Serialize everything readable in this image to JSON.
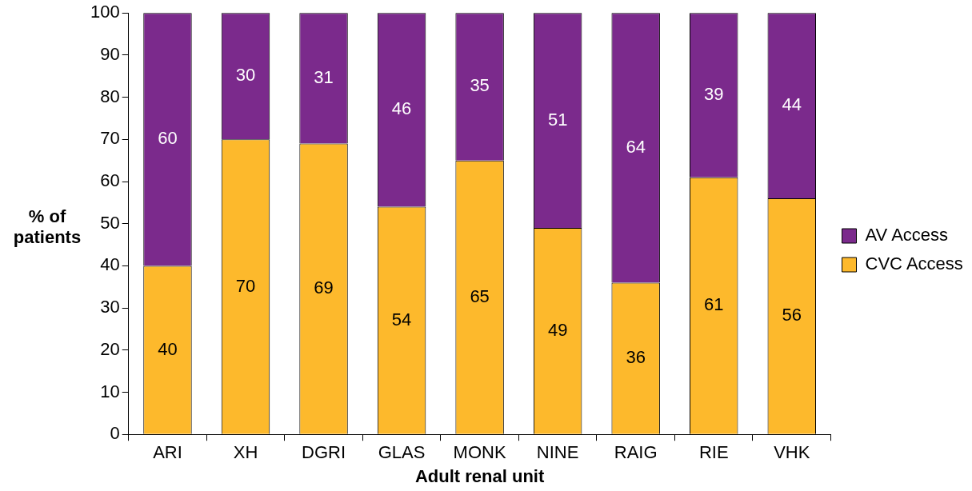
{
  "chart_data": {
    "type": "bar",
    "xlabel": "Adult renal unit",
    "ylabel": "% of patients",
    "categories": [
      "ARI",
      "XH",
      "DGRI",
      "GLAS",
      "MONK",
      "NINE",
      "RAIG",
      "RIE",
      "VHK"
    ],
    "stacked": true,
    "series": [
      {
        "name": "CVC Access",
        "color": "#fdb92c",
        "values": [
          40,
          70,
          69,
          54,
          65,
          49,
          36,
          61,
          56
        ]
      },
      {
        "name": "AV Access",
        "color": "#7b2a8c",
        "values": [
          60,
          30,
          31,
          46,
          35,
          51,
          64,
          39,
          44
        ]
      }
    ],
    "ylim": [
      0,
      100
    ],
    "yticks": [
      0,
      10,
      20,
      30,
      40,
      50,
      60,
      70,
      80,
      90,
      100
    ],
    "grid": false,
    "legend": "right",
    "data_labels": true
  }
}
